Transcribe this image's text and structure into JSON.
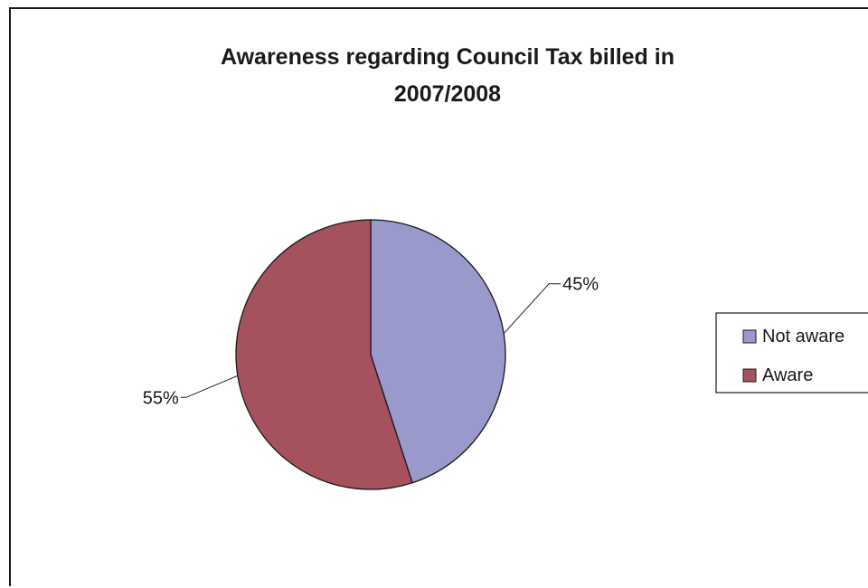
{
  "chart_data": {
    "type": "pie",
    "title_lines": [
      "Awareness regarding Council Tax billed in",
      "2007/2008"
    ],
    "categories": [
      "Not aware",
      "Aware"
    ],
    "values": [
      45,
      55
    ],
    "data_labels": [
      "45%",
      "55%"
    ],
    "colors": [
      "#9999cc",
      "#a5525e"
    ],
    "start_angle_deg": 0,
    "direction": "clockwise",
    "legend": {
      "placement": "right",
      "entries": [
        "Not aware",
        "Aware"
      ]
    }
  }
}
